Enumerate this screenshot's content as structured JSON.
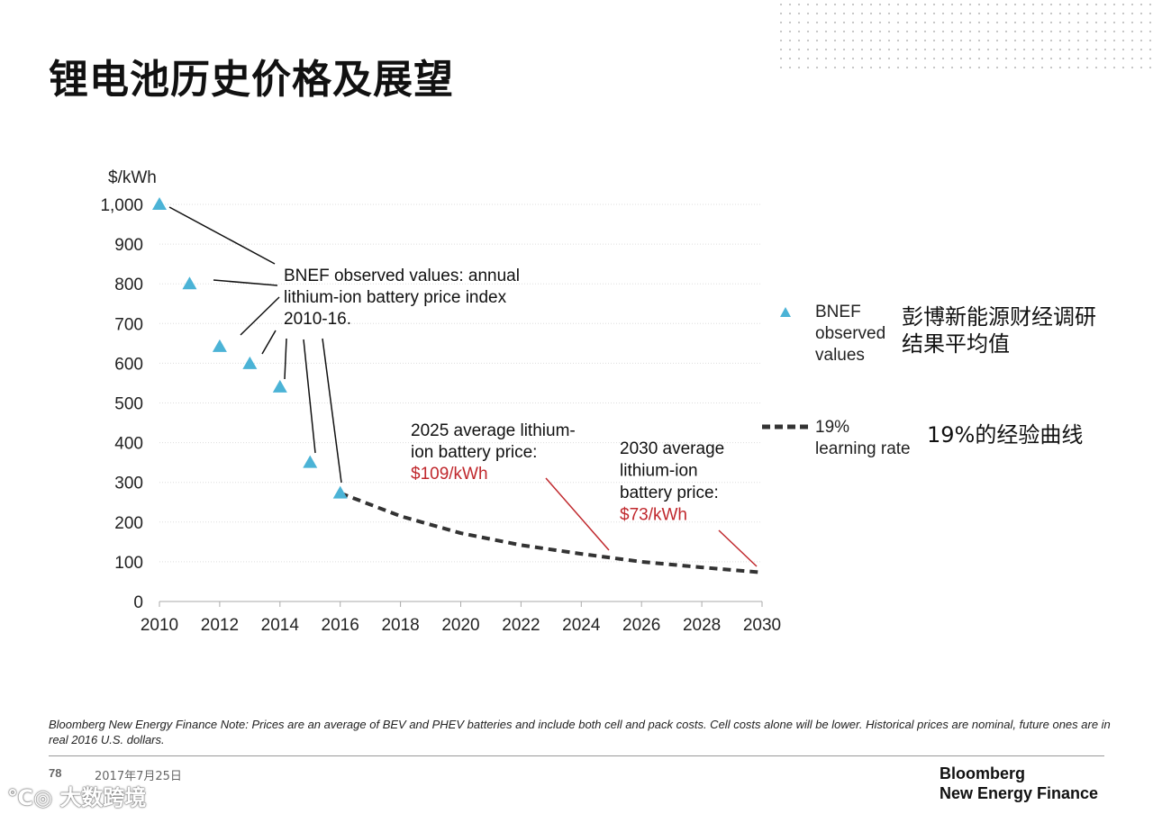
{
  "title": "锂电池历史价格及展望",
  "chart_data": {
    "type": "scatter",
    "ylabel": "$/kWh",
    "xlim": [
      2010,
      2030
    ],
    "ylim": [
      0,
      1000
    ],
    "x_ticks": [
      2010,
      2012,
      2014,
      2016,
      2018,
      2020,
      2022,
      2024,
      2026,
      2028,
      2030
    ],
    "y_ticks": [
      0,
      100,
      200,
      300,
      400,
      500,
      600,
      700,
      800,
      900,
      1000
    ],
    "y_tick_labels": [
      "0",
      "100",
      "200",
      "300",
      "400",
      "500",
      "600",
      "700",
      "800",
      "900",
      "1,000"
    ],
    "grid": "horizontal",
    "series": [
      {
        "name": "BNEF observed values",
        "kind": "scatter",
        "marker": "triangle",
        "color": "#4bb3d6",
        "x": [
          2010,
          2011,
          2012,
          2013,
          2014,
          2015,
          2016
        ],
        "y": [
          1000,
          800,
          642,
          599,
          540,
          350,
          273
        ]
      },
      {
        "name": "19% learning rate",
        "kind": "line",
        "style": "dashed",
        "color": "#333333",
        "x": [
          2016,
          2018,
          2020,
          2022,
          2024,
          2026,
          2028,
          2030
        ],
        "y": [
          273,
          215,
          172,
          142,
          120,
          100,
          86,
          73
        ]
      }
    ],
    "annotations": [
      {
        "id": "observed",
        "lines": [
          "BNEF observed values: annual",
          "lithium-ion battery price index",
          "2010-16."
        ]
      },
      {
        "id": "price2025",
        "lines": [
          "2025 average lithium-",
          "ion battery price:"
        ],
        "highlight": "$109/kWh"
      },
      {
        "id": "price2030",
        "lines": [
          "2030 average",
          "lithium-ion",
          "battery price:"
        ],
        "highlight": "$73/kWh"
      }
    ],
    "highlight_color": "#c0282d"
  },
  "legend": {
    "observed_label_lines": [
      "BNEF",
      "observed",
      "values"
    ],
    "observed_cn_lines": [
      "彭博新能源财经调研",
      "结果平均值"
    ],
    "learning_label_lines": [
      "19%",
      "learning rate"
    ],
    "learning_cn": "19%的经验曲线"
  },
  "footnote": "Bloomberg New Energy Finance Note: Prices are an average of BEV and PHEV batteries and include both cell and pack costs. Cell costs alone will be lower. Historical prices are nominal, future ones are in real 2016 U.S. dollars.",
  "footer": {
    "page_number": "78",
    "date": "2017年7月25日",
    "brand_line1": "Bloomberg",
    "brand_line2": "New Energy Finance",
    "watermark": "大数跨境"
  }
}
